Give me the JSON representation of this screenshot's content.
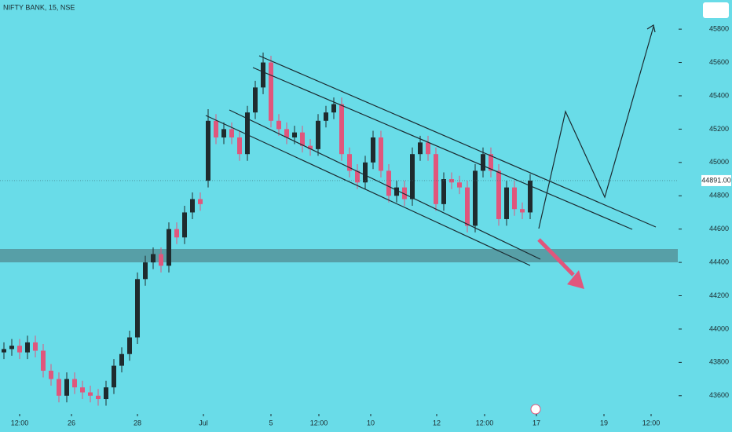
{
  "chart_data": {
    "type": "candlestick",
    "title": "NIFTY BANK, 15, NSE",
    "up_color": "#1f2b2e",
    "down_color": "#e0567c",
    "xlim": [
      0,
      86.2
    ],
    "ylim": [
      43500,
      45975
    ],
    "yticks": [
      43600,
      43800,
      44000,
      44200,
      44400,
      44600,
      44800,
      45000,
      45200,
      45400,
      45600,
      45800
    ],
    "xticks": [
      {
        "value": 2.5,
        "label": "12:00"
      },
      {
        "value": 9.1,
        "label": "26"
      },
      {
        "value": 17.5,
        "label": "28"
      },
      {
        "value": 25.9,
        "label": "Jul"
      },
      {
        "value": 34.5,
        "label": "5"
      },
      {
        "value": 40.6,
        "label": "12:00"
      },
      {
        "value": 47.2,
        "label": "10"
      },
      {
        "value": 55.6,
        "label": "12"
      },
      {
        "value": 61.7,
        "label": "12:00"
      },
      {
        "value": 68.3,
        "label": "17"
      },
      {
        "value": 76.9,
        "label": "19"
      },
      {
        "value": 82.9,
        "label": "12:00"
      }
    ],
    "price_label": {
      "value": 44891,
      "label": "44891.00"
    },
    "open": [
      43860,
      43880,
      43900,
      43860,
      43920,
      43870,
      43750,
      43700,
      43600,
      43700,
      43650,
      43620,
      43600,
      43580,
      43650,
      43780,
      43850,
      43950,
      44300,
      44400,
      44450,
      44380,
      44600,
      44550,
      44700,
      44780,
      44890,
      45250,
      45150,
      45200,
      45150,
      45050,
      45300,
      45450,
      45600,
      45250,
      45200,
      45150,
      45180,
      45100,
      45080,
      45250,
      45300,
      45350,
      45050,
      44950,
      44880,
      45000,
      45150,
      44950,
      44800,
      44850,
      44780,
      45050,
      45120,
      45050,
      44750,
      44900,
      44880,
      44850,
      44620,
      44950,
      45050,
      44950,
      44660,
      44850,
      44720,
      44700
    ],
    "high": [
      43920,
      43940,
      43940,
      43960,
      43960,
      43910,
      43790,
      43740,
      43740,
      43740,
      43690,
      43660,
      43640,
      43690,
      43820,
      43890,
      43990,
      44340,
      44440,
      44490,
      44490,
      44640,
      44640,
      44740,
      44820,
      44820,
      45320,
      45290,
      45240,
      45240,
      45190,
      45340,
      45490,
      45660,
      45640,
      45290,
      45240,
      45220,
      45220,
      45140,
      45290,
      45340,
      45390,
      45390,
      45090,
      44990,
      45040,
      45190,
      45190,
      44990,
      44890,
      44890,
      45090,
      45160,
      45160,
      45090,
      44940,
      44940,
      44920,
      44890,
      44990,
      45090,
      45090,
      44990,
      44890,
      44890,
      44760,
      44930
    ],
    "low": [
      43820,
      43840,
      43820,
      43820,
      43830,
      43710,
      43660,
      43560,
      43560,
      43610,
      43580,
      43560,
      43540,
      43540,
      43610,
      43740,
      43810,
      43910,
      44260,
      44360,
      44340,
      44340,
      44510,
      44510,
      44660,
      44710,
      44850,
      45110,
      45110,
      45110,
      45010,
      45010,
      45260,
      45410,
      45210,
      45160,
      45110,
      45110,
      45060,
      45040,
      45040,
      45210,
      45260,
      45010,
      44910,
      44840,
      44840,
      44960,
      44910,
      44760,
      44760,
      44740,
      44740,
      45010,
      45010,
      44710,
      44710,
      44840,
      44810,
      44580,
      44580,
      44910,
      44910,
      44620,
      44620,
      44680,
      44660,
      44660
    ],
    "close": [
      43880,
      43900,
      43860,
      43920,
      43870,
      43750,
      43700,
      43600,
      43700,
      43650,
      43620,
      43600,
      43580,
      43650,
      43780,
      43850,
      43950,
      44300,
      44400,
      44450,
      44380,
      44600,
      44550,
      44700,
      44780,
      44750,
      45250,
      45150,
      45200,
      45150,
      45050,
      45300,
      45450,
      45600,
      45250,
      45200,
      45150,
      45180,
      45100,
      45080,
      45250,
      45300,
      45350,
      45050,
      44950,
      44880,
      45000,
      45150,
      44950,
      44800,
      44850,
      44780,
      45050,
      45120,
      45050,
      44750,
      44900,
      44880,
      44850,
      44620,
      44950,
      45050,
      44950,
      44660,
      44850,
      44720,
      44700,
      44891
    ]
  }
}
